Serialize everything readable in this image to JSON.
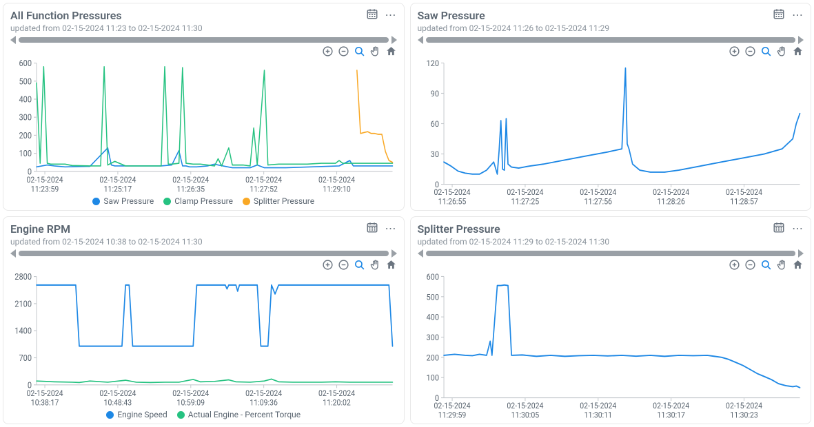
{
  "colors": {
    "blue": "#1e88e5",
    "green": "#26c281",
    "orange": "#f9a825",
    "axis": "#c5c9cd",
    "text": "#5a6570",
    "subtext": "#8a939c",
    "icon": "#6b7580",
    "rangebar": "#9aa0a6"
  },
  "panels": [
    {
      "id": "all-func",
      "title": "All Function Pressures",
      "subtitle": "updated from 02-15-2024 11:23 to 02-15-2024 11:30",
      "ylim": [
        0,
        600
      ],
      "ytick_step": 100,
      "x_labels": [
        {
          "line1": "02-15-2024",
          "line2": "11:23:59"
        },
        {
          "line1": "02-15-2024",
          "line2": "11:25:17"
        },
        {
          "line1": "02-15-2024",
          "line2": "11:26:35"
        },
        {
          "line1": "02-15-2024",
          "line2": "11:27:52"
        },
        {
          "line1": "02-15-2024",
          "line2": "11:29:10"
        }
      ],
      "legend": [
        {
          "label": "Saw Pressure",
          "color": "#1e88e5"
        },
        {
          "label": "Clamp Pressure",
          "color": "#26c281"
        },
        {
          "label": "Splitter Pressure",
          "color": "#f9a825"
        }
      ],
      "series": [
        {
          "color": "#1e88e5",
          "width": 1.5,
          "points": [
            [
              0,
              25
            ],
            [
              3,
              35
            ],
            [
              5,
              30
            ],
            [
              8,
              25
            ],
            [
              15,
              28
            ],
            [
              20,
              130
            ],
            [
              21,
              35
            ],
            [
              22,
              30
            ],
            [
              25,
              30
            ],
            [
              35,
              30
            ],
            [
              38,
              35
            ],
            [
              40,
              115
            ],
            [
              41,
              30
            ],
            [
              42,
              30
            ],
            [
              43,
              25
            ],
            [
              45,
              25
            ],
            [
              48,
              30
            ],
            [
              50,
              40
            ],
            [
              51,
              35
            ],
            [
              55,
              20
            ],
            [
              60,
              20
            ],
            [
              62,
              35
            ],
            [
              64,
              20
            ],
            [
              68,
              20
            ],
            [
              70,
              20
            ],
            [
              85,
              30
            ],
            [
              88,
              60
            ],
            [
              89,
              30
            ],
            [
              92,
              30
            ],
            [
              100,
              30
            ]
          ]
        },
        {
          "color": "#26c281",
          "width": 1.5,
          "points": [
            [
              0,
              490
            ],
            [
              1,
              45
            ],
            [
              2,
              580
            ],
            [
              3,
              45
            ],
            [
              4,
              40
            ],
            [
              8,
              40
            ],
            [
              10,
              32
            ],
            [
              15,
              30
            ],
            [
              18,
              30
            ],
            [
              19,
              580
            ],
            [
              20,
              35
            ],
            [
              22,
              55
            ],
            [
              25,
              30
            ],
            [
              28,
              30
            ],
            [
              34,
              30
            ],
            [
              35,
              30
            ],
            [
              36,
              580
            ],
            [
              37,
              40
            ],
            [
              38,
              40
            ],
            [
              40,
              45
            ],
            [
              41,
              575
            ],
            [
              42,
              45
            ],
            [
              44,
              40
            ],
            [
              46,
              40
            ],
            [
              48,
              35
            ],
            [
              50,
              30
            ],
            [
              51,
              70
            ],
            [
              52,
              30
            ],
            [
              54,
              130
            ],
            [
              55,
              35
            ],
            [
              58,
              35
            ],
            [
              60,
              30
            ],
            [
              61,
              240
            ],
            [
              62,
              35
            ],
            [
              64,
              560
            ],
            [
              65,
              35
            ],
            [
              68,
              40
            ],
            [
              72,
              40
            ],
            [
              76,
              40
            ],
            [
              80,
              45
            ],
            [
              84,
              45
            ],
            [
              85,
              60
            ],
            [
              86,
              45
            ],
            [
              87,
              45
            ],
            [
              100,
              45
            ]
          ]
        },
        {
          "color": "#f9a825",
          "width": 1.5,
          "points": [
            [
              90,
              560
            ],
            [
              91,
              210
            ],
            [
              92,
              215
            ],
            [
              93,
              220
            ],
            [
              94,
              210
            ],
            [
              95,
              210
            ],
            [
              96,
              205
            ],
            [
              97,
              205
            ],
            [
              98,
              110
            ],
            [
              99,
              60
            ],
            [
              100,
              50
            ]
          ]
        }
      ]
    },
    {
      "id": "saw",
      "title": "Saw Pressure",
      "subtitle": "updated from 02-15-2024 11:26 to 02-15-2024 11:29",
      "ylim": [
        0,
        120
      ],
      "ytick_step": 30,
      "x_labels": [
        {
          "line1": "02-15-2024",
          "line2": "11:26:55"
        },
        {
          "line1": "02-15-2024",
          "line2": "11:27:25"
        },
        {
          "line1": "02-15-2024",
          "line2": "11:27:56"
        },
        {
          "line1": "02-15-2024",
          "line2": "11:28:26"
        },
        {
          "line1": "02-15-2024",
          "line2": "11:28:57"
        }
      ],
      "legend": [],
      "series": [
        {
          "color": "#1e88e5",
          "width": 1.7,
          "points": [
            [
              0,
              22
            ],
            [
              2,
              18
            ],
            [
              4,
              13
            ],
            [
              6,
              11
            ],
            [
              8,
              10
            ],
            [
              10,
              10
            ],
            [
              12,
              14
            ],
            [
              14,
              22
            ],
            [
              15,
              10
            ],
            [
              15.5,
              33
            ],
            [
              16,
              63
            ],
            [
              16.5,
              15
            ],
            [
              17,
              14
            ],
            [
              17.5,
              65
            ],
            [
              18,
              20
            ],
            [
              19,
              17
            ],
            [
              21,
              16
            ],
            [
              24,
              18
            ],
            [
              28,
              20
            ],
            [
              34,
              24
            ],
            [
              40,
              28
            ],
            [
              46,
              32
            ],
            [
              50,
              35
            ],
            [
              51,
              115
            ],
            [
              51.5,
              40
            ],
            [
              52,
              35
            ],
            [
              53,
              20
            ],
            [
              55,
              14
            ],
            [
              58,
              12
            ],
            [
              62,
              12
            ],
            [
              66,
              14
            ],
            [
              72,
              18
            ],
            [
              78,
              22
            ],
            [
              84,
              26
            ],
            [
              90,
              30
            ],
            [
              95,
              35
            ],
            [
              98,
              45
            ],
            [
              99,
              60
            ],
            [
              100,
              70
            ]
          ]
        }
      ]
    },
    {
      "id": "rpm",
      "title": "Engine RPM",
      "subtitle": "updated from 02-15-2024 10:38 to 02-15-2024 11:30",
      "ylim": [
        0,
        2800
      ],
      "ytick_step": 700,
      "x_labels": [
        {
          "line1": "02-15-2024",
          "line2": "10:38:17"
        },
        {
          "line1": "02-15-2024",
          "line2": "10:48:43"
        },
        {
          "line1": "02-15-2024",
          "line2": "10:59:09"
        },
        {
          "line1": "02-15-2024",
          "line2": "11:09:36"
        },
        {
          "line1": "02-15-2024",
          "line2": "11:20:02"
        }
      ],
      "legend": [
        {
          "label": "Engine Speed",
          "color": "#1e88e5"
        },
        {
          "label": "Actual Engine - Percent Torque",
          "color": "#26c281"
        }
      ],
      "series": [
        {
          "color": "#1e88e5",
          "width": 1.7,
          "points": [
            [
              0,
              2580
            ],
            [
              11,
              2580
            ],
            [
              12,
              1000
            ],
            [
              24,
              1000
            ],
            [
              25,
              2580
            ],
            [
              26,
              2580
            ],
            [
              27,
              1000
            ],
            [
              44,
              1000
            ],
            [
              45,
              2580
            ],
            [
              53,
              2580
            ],
            [
              53.5,
              2480
            ],
            [
              54,
              2580
            ],
            [
              56,
              2580
            ],
            [
              56.5,
              2420
            ],
            [
              57,
              2580
            ],
            [
              62,
              2580
            ],
            [
              63,
              1000
            ],
            [
              65,
              1000
            ],
            [
              66,
              2580
            ],
            [
              67,
              2350
            ],
            [
              68,
              2580
            ],
            [
              99,
              2580
            ],
            [
              100,
              1000
            ]
          ]
        },
        {
          "color": "#26c281",
          "width": 1.5,
          "points": [
            [
              0,
              100
            ],
            [
              5,
              80
            ],
            [
              10,
              70
            ],
            [
              12,
              60
            ],
            [
              15,
              100
            ],
            [
              20,
              70
            ],
            [
              25,
              120
            ],
            [
              28,
              70
            ],
            [
              32,
              60
            ],
            [
              36,
              70
            ],
            [
              40,
              70
            ],
            [
              44,
              140
            ],
            [
              46,
              80
            ],
            [
              50,
              90
            ],
            [
              54,
              130
            ],
            [
              56,
              80
            ],
            [
              60,
              70
            ],
            [
              64,
              100
            ],
            [
              66,
              150
            ],
            [
              68,
              80
            ],
            [
              72,
              70
            ],
            [
              76,
              70
            ],
            [
              80,
              70
            ],
            [
              84,
              80
            ],
            [
              88,
              70
            ],
            [
              92,
              70
            ],
            [
              96,
              70
            ],
            [
              100,
              70
            ]
          ]
        }
      ]
    },
    {
      "id": "splitter",
      "title": "Splitter Pressure",
      "subtitle": "updated from 02-15-2024 11:29 to 02-15-2024 11:30",
      "ylim": [
        0,
        600
      ],
      "ytick_step": 100,
      "x_labels": [
        {
          "line1": "02-15-2024",
          "line2": "11:29:59"
        },
        {
          "line1": "02-15-2024",
          "line2": "11:30:05"
        },
        {
          "line1": "02-15-2024",
          "line2": "11:30:11"
        },
        {
          "line1": "02-15-2024",
          "line2": "11:30:17"
        },
        {
          "line1": "02-15-2024",
          "line2": "11:30:23"
        }
      ],
      "legend": [],
      "series": [
        {
          "color": "#1e88e5",
          "width": 1.7,
          "points": [
            [
              0,
              210
            ],
            [
              3,
              215
            ],
            [
              6,
              210
            ],
            [
              8,
              208
            ],
            [
              10,
              215
            ],
            [
              12,
              210
            ],
            [
              13,
              280
            ],
            [
              13.5,
              210
            ],
            [
              15,
              555
            ],
            [
              16,
              555
            ],
            [
              17,
              558
            ],
            [
              18,
              555
            ],
            [
              19,
              210
            ],
            [
              22,
              212
            ],
            [
              26,
              205
            ],
            [
              30,
              210
            ],
            [
              34,
              205
            ],
            [
              38,
              208
            ],
            [
              42,
              210
            ],
            [
              46,
              207
            ],
            [
              50,
              210
            ],
            [
              54,
              206
            ],
            [
              58,
              210
            ],
            [
              62,
              205
            ],
            [
              66,
              210
            ],
            [
              70,
              208
            ],
            [
              74,
              210
            ],
            [
              76,
              205
            ],
            [
              78,
              200
            ],
            [
              80,
              190
            ],
            [
              82,
              175
            ],
            [
              84,
              160
            ],
            [
              86,
              140
            ],
            [
              88,
              120
            ],
            [
              90,
              105
            ],
            [
              92,
              90
            ],
            [
              94,
              70
            ],
            [
              96,
              60
            ],
            [
              98,
              55
            ],
            [
              99,
              58
            ],
            [
              100,
              50
            ]
          ]
        }
      ]
    }
  ]
}
